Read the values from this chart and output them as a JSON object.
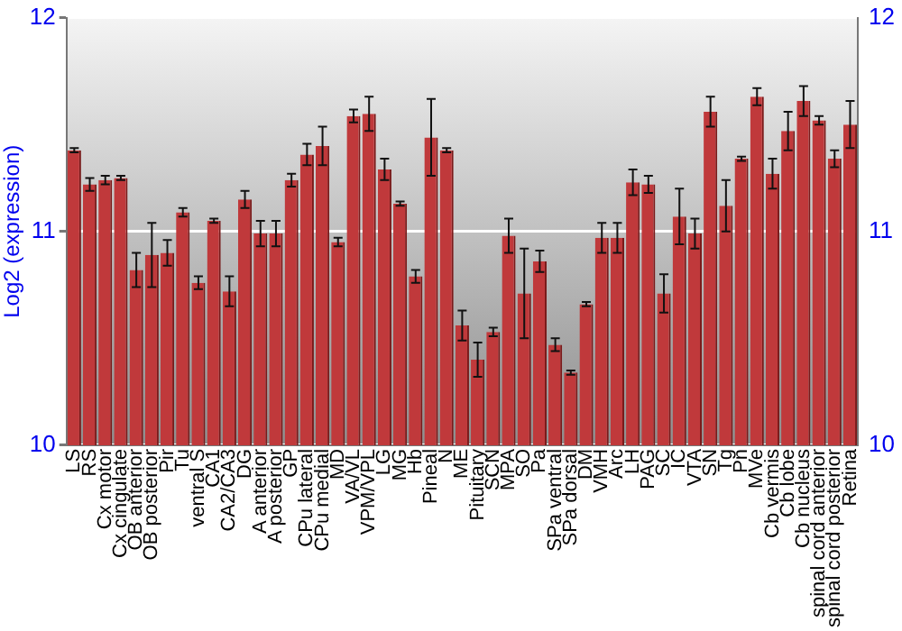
{
  "chart_data": {
    "type": "bar",
    "ylabel": "Log2 (expression)",
    "categories": [
      "LS",
      "RS",
      "Cx motor",
      "Cx cingulate",
      "OB anterior",
      "OB posterior",
      "Pir",
      "Tu",
      "ventral S",
      "CA1",
      "CA2/CA3",
      "DG",
      "A anterior",
      "A posterior",
      "GP",
      "CPu lateral",
      "CPu medial",
      "MD",
      "VA/VL",
      "VPM/VPL",
      "LG",
      "MG",
      "Hb",
      "Pineal",
      "N",
      "ME",
      "Pituitary",
      "SCN",
      "MPA",
      "SO",
      "Pa",
      "SPa ventral",
      "SPa dorsal",
      "DM",
      "VMH",
      "Arc",
      "LH",
      "PAG",
      "SC",
      "IC",
      "VTA",
      "SN",
      "Tg",
      "Pn",
      "MVe",
      "Cb vermis",
      "Cb lobe",
      "Cb nucleus",
      "spinal cord anterior",
      "spinal cord posterior",
      "Retina"
    ],
    "values": [
      11.38,
      11.22,
      11.24,
      11.25,
      10.82,
      10.89,
      10.9,
      11.09,
      10.76,
      11.05,
      10.72,
      11.15,
      10.99,
      10.99,
      11.24,
      11.36,
      11.4,
      10.95,
      11.54,
      11.55,
      11.29,
      11.13,
      10.79,
      11.44,
      11.38,
      10.56,
      10.4,
      10.53,
      10.98,
      10.71,
      10.86,
      10.47,
      10.34,
      10.66,
      10.97,
      10.97,
      11.23,
      11.22,
      10.71,
      11.07,
      10.99,
      11.56,
      11.12,
      11.34,
      11.63,
      11.27,
      11.47,
      11.61,
      11.52,
      11.34,
      11.5
    ],
    "errors": [
      0.01,
      0.03,
      0.02,
      0.01,
      0.08,
      0.15,
      0.06,
      0.02,
      0.03,
      0.01,
      0.07,
      0.04,
      0.06,
      0.06,
      0.03,
      0.05,
      0.09,
      0.02,
      0.03,
      0.08,
      0.05,
      0.01,
      0.03,
      0.18,
      0.01,
      0.07,
      0.08,
      0.02,
      0.08,
      0.21,
      0.05,
      0.03,
      0.01,
      0.01,
      0.07,
      0.07,
      0.06,
      0.04,
      0.09,
      0.13,
      0.07,
      0.07,
      0.12,
      0.01,
      0.04,
      0.07,
      0.09,
      0.07,
      0.02,
      0.04,
      0.11
    ],
    "color": "#c0393b",
    "ylim": [
      10,
      12
    ],
    "yticks": [
      10,
      11,
      12
    ],
    "y2lim": [
      10,
      12
    ],
    "y2ticks": [
      10,
      11,
      12
    ],
    "grid": "y",
    "legend": false
  }
}
